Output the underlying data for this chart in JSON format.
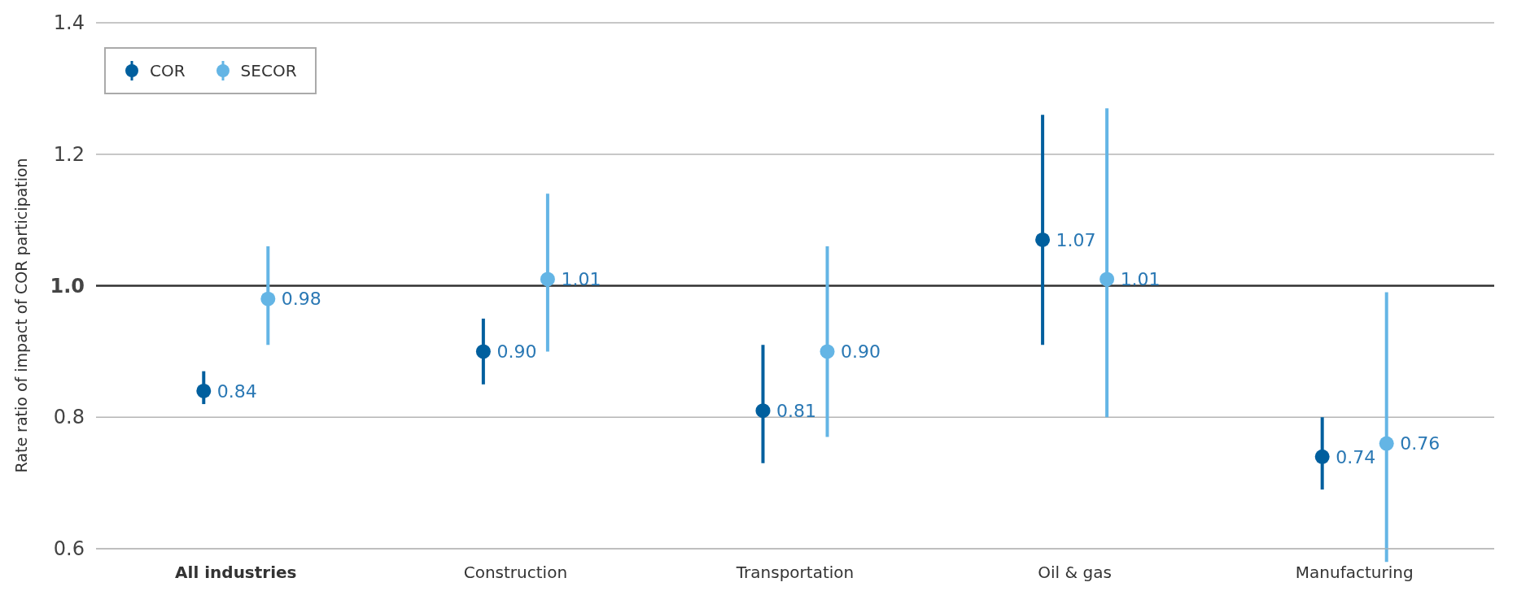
{
  "chart_data": {
    "type": "scatter",
    "ylabel": "Rate ratio of impact of COR participation",
    "categories": [
      "All industries",
      "Construction",
      "Transportation",
      "Oil & gas",
      "Manufacturing"
    ],
    "series": [
      {
        "name": "COR",
        "color": "#005f9e",
        "values": [
          0.84,
          0.9,
          0.81,
          1.07,
          0.74
        ],
        "errors": [
          [
            0.82,
            0.87
          ],
          [
            0.85,
            0.95
          ],
          [
            0.73,
            0.91
          ],
          [
            0.91,
            1.26
          ],
          [
            0.69,
            0.8
          ]
        ],
        "value_labels": [
          "0.84",
          "0.90",
          "0.81",
          "1.07",
          "0.74"
        ]
      },
      {
        "name": "SECOR",
        "color": "#64b5e5",
        "values": [
          0.98,
          1.01,
          0.9,
          1.01,
          0.76
        ],
        "errors": [
          [
            0.91,
            1.06
          ],
          [
            0.9,
            1.14
          ],
          [
            0.77,
            1.06
          ],
          [
            0.8,
            1.27
          ],
          [
            0.58,
            0.99
          ]
        ],
        "value_labels": [
          "0.98",
          "1.01",
          "0.90",
          "1.01",
          "0.76"
        ]
      }
    ],
    "ylim": [
      0.6,
      1.4
    ],
    "yticks": [
      0.6,
      0.8,
      {
        "value": 1,
        "label": "1.0"
      },
      1.2,
      1.4
    ],
    "ref_lines": [
      {
        "axis": "y",
        "value": 1,
        "color": "#333333"
      }
    ],
    "grid": "y",
    "legend": "top left",
    "marker": "circle"
  }
}
